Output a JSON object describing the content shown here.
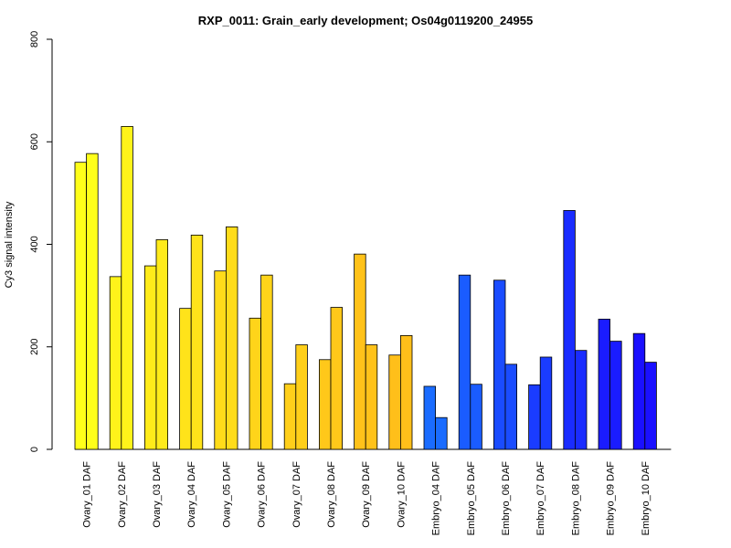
{
  "chart_data": {
    "type": "bar",
    "title": "RXP_0011: Grain_early development; Os04g0119200_24955",
    "xlabel": "",
    "ylabel": "Cy3 signal intensity",
    "ylim": [
      0,
      800
    ],
    "yticks": [
      0,
      200,
      400,
      600,
      800
    ],
    "grid": false,
    "legend": "none",
    "categories": [
      "Ovary_01 DAF",
      "Ovary_02 DAF",
      "Ovary_03 DAF",
      "Ovary_04 DAF",
      "Ovary_05 DAF",
      "Ovary_06 DAF",
      "Ovary_07 DAF",
      "Ovary_08 DAF",
      "Ovary_09 DAF",
      "Ovary_10 DAF",
      "Embryo_04 DAF",
      "Embryo_05 DAF",
      "Embryo_06 DAF",
      "Embryo_07 DAF",
      "Embryo_08 DAF",
      "Embryo_09 DAF",
      "Embryo_10 DAF"
    ],
    "series": [
      {
        "values": [
          560,
          337,
          358,
          275,
          348,
          256,
          128,
          175,
          381,
          184,
          123,
          340,
          330,
          126,
          466,
          254,
          226
        ]
      },
      {
        "values": [
          577,
          630,
          409,
          418,
          434,
          340,
          204,
          277,
          204,
          222,
          62,
          127,
          166,
          180,
          193,
          211,
          170
        ]
      }
    ],
    "colors": [
      "#ffff1a",
      "#fff31a",
      "#ffeb1a",
      "#ffe31a",
      "#ffdc1a",
      "#ffd41a",
      "#ffcf1a",
      "#ffc81a",
      "#ffc21a",
      "#ffbf1a",
      "#1a6cff",
      "#1a5cff",
      "#1a4cff",
      "#1a3cff",
      "#1a2cff",
      "#1a1cff",
      "#1a10ff"
    ]
  }
}
